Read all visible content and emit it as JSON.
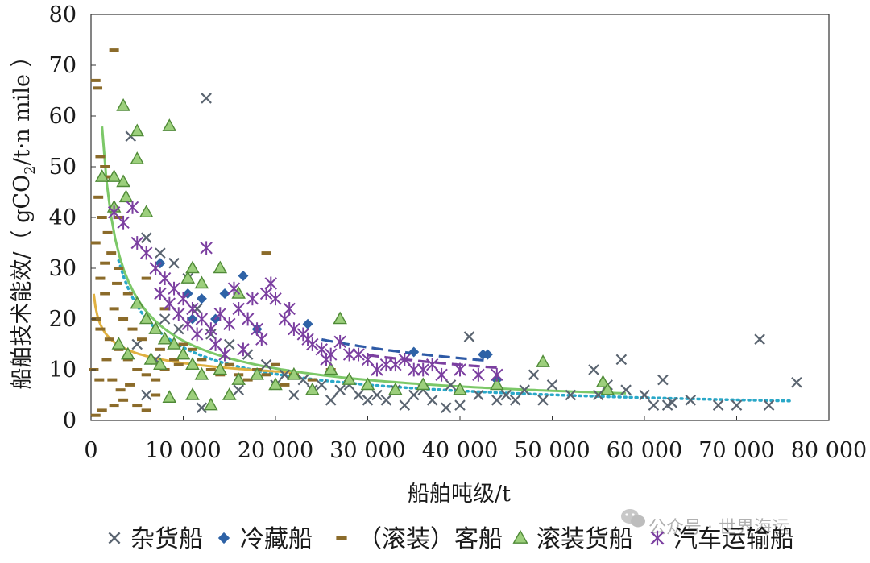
{
  "chart_data": {
    "type": "scatter",
    "title": "",
    "xlabel": "船舶吨级/t",
    "ylabel": "船舶技术能效/（ gCO2/t·n mile ）",
    "ylabel_parts": {
      "pre": "船舶技术能效/（ gCO",
      "sub": "2",
      "post": "/t·n mile ）"
    },
    "xlim": [
      0,
      80000
    ],
    "ylim": [
      0,
      80
    ],
    "x_ticks": [
      0,
      10000,
      20000,
      30000,
      40000,
      50000,
      60000,
      70000,
      80000
    ],
    "x_tick_labels": [
      "0",
      "10 000",
      "20 000",
      "30 000",
      "40 000",
      "50 000",
      "60 000",
      "70 000",
      "80 000"
    ],
    "y_ticks": [
      0,
      10,
      20,
      30,
      40,
      50,
      60,
      70,
      80
    ],
    "y_tick_labels": [
      "0",
      "10",
      "20",
      "30",
      "40",
      "50",
      "60",
      "70",
      "80"
    ],
    "grid": false,
    "legend_position": "bottom",
    "series": [
      {
        "name": "杂货船",
        "marker": "x",
        "color": "#5a6470",
        "points": [
          [
            12500,
            63.5
          ],
          [
            4300,
            56
          ],
          [
            6000,
            36
          ],
          [
            7500,
            33
          ],
          [
            9000,
            31
          ],
          [
            10500,
            28
          ],
          [
            11500,
            22
          ],
          [
            8000,
            20
          ],
          [
            9500,
            18
          ],
          [
            13000,
            17
          ],
          [
            15000,
            15
          ],
          [
            17000,
            13
          ],
          [
            19000,
            11
          ],
          [
            21000,
            9
          ],
          [
            23000,
            8
          ],
          [
            25000,
            7
          ],
          [
            27000,
            6
          ],
          [
            29000,
            5
          ],
          [
            31000,
            5
          ],
          [
            33000,
            6
          ],
          [
            35000,
            5
          ],
          [
            37000,
            4
          ],
          [
            38500,
            2.5
          ],
          [
            36000,
            6
          ],
          [
            39000,
            7
          ],
          [
            41000,
            16.5
          ],
          [
            42000,
            5
          ],
          [
            44000,
            4
          ],
          [
            46000,
            4
          ],
          [
            48000,
            9
          ],
          [
            50000,
            7
          ],
          [
            52000,
            5
          ],
          [
            54500,
            10
          ],
          [
            56000,
            7
          ],
          [
            57500,
            12
          ],
          [
            60000,
            5
          ],
          [
            62000,
            8
          ],
          [
            62500,
            3
          ],
          [
            63000,
            3.5
          ],
          [
            65000,
            4
          ],
          [
            68000,
            3
          ],
          [
            70000,
            3
          ],
          [
            72500,
            16
          ],
          [
            73500,
            3
          ],
          [
            76500,
            7.5
          ],
          [
            6000,
            5
          ],
          [
            5000,
            15
          ],
          [
            7000,
            12
          ],
          [
            26000,
            4
          ],
          [
            30000,
            4
          ],
          [
            34000,
            3
          ],
          [
            40000,
            3
          ],
          [
            45000,
            5
          ],
          [
            47000,
            6
          ],
          [
            49000,
            4
          ],
          [
            55000,
            5
          ],
          [
            58000,
            6
          ],
          [
            61000,
            3
          ],
          [
            12000,
            2.5
          ],
          [
            16000,
            6
          ],
          [
            20000,
            7
          ],
          [
            22000,
            5
          ],
          [
            24000,
            6
          ],
          [
            28000,
            7
          ],
          [
            32000,
            4
          ]
        ]
      },
      {
        "name": "冷藏船",
        "marker": "diamond",
        "color": "#2e62a6",
        "points": [
          [
            7500,
            31
          ],
          [
            10500,
            25
          ],
          [
            11000,
            20
          ],
          [
            12000,
            24
          ],
          [
            13500,
            20
          ],
          [
            14500,
            25
          ],
          [
            16500,
            28.5
          ],
          [
            18000,
            18
          ],
          [
            23500,
            19
          ],
          [
            35000,
            13.5
          ],
          [
            42500,
            13
          ],
          [
            43000,
            13
          ],
          [
            44000,
            8
          ]
        ]
      },
      {
        "name": "（滚装）客船",
        "marker": "dash",
        "color": "#8b6b2a",
        "points": [
          [
            500,
            67
          ],
          [
            700,
            65.5
          ],
          [
            2500,
            73
          ],
          [
            1000,
            52
          ],
          [
            1500,
            50
          ],
          [
            2000,
            48
          ],
          [
            800,
            44
          ],
          [
            1200,
            40
          ],
          [
            1800,
            37
          ],
          [
            500,
            35
          ],
          [
            2200,
            33
          ],
          [
            3000,
            30
          ],
          [
            1000,
            28
          ],
          [
            1500,
            25
          ],
          [
            2500,
            22
          ],
          [
            3500,
            20
          ],
          [
            1000,
            18
          ],
          [
            2000,
            16
          ],
          [
            3000,
            14
          ],
          [
            4000,
            12
          ],
          [
            5000,
            10
          ],
          [
            6000,
            9
          ],
          [
            7000,
            8
          ],
          [
            8000,
            10
          ],
          [
            9000,
            12
          ],
          [
            10000,
            15
          ],
          [
            11000,
            14
          ],
          [
            12000,
            12
          ],
          [
            13000,
            10
          ],
          [
            14000,
            9
          ],
          [
            15000,
            11
          ],
          [
            16000,
            9
          ],
          [
            17000,
            8
          ],
          [
            18000,
            10
          ],
          [
            19000,
            9
          ],
          [
            20000,
            11
          ],
          [
            21000,
            7
          ],
          [
            22000,
            9
          ],
          [
            24000,
            8
          ],
          [
            26000,
            10
          ],
          [
            19000,
            33
          ],
          [
            500,
            1
          ],
          [
            1200,
            2
          ],
          [
            2500,
            3
          ],
          [
            3500,
            4
          ],
          [
            5000,
            3
          ],
          [
            6000,
            2
          ],
          [
            7000,
            5
          ],
          [
            4000,
            25
          ],
          [
            6000,
            28
          ],
          [
            8000,
            22
          ],
          [
            3000,
            40
          ],
          [
            1500,
            31
          ],
          [
            2800,
            27
          ],
          [
            4500,
            18
          ],
          [
            5500,
            16
          ],
          [
            7500,
            14
          ],
          [
            9500,
            11
          ],
          [
            600,
            20
          ],
          [
            1700,
            12
          ],
          [
            2300,
            8
          ],
          [
            3200,
            6
          ],
          [
            4200,
            7
          ],
          [
            300,
            10
          ],
          [
            900,
            8
          ]
        ]
      },
      {
        "name": "滚装货船",
        "marker": "triangle",
        "color": "#8dc06b",
        "points": [
          [
            3500,
            62
          ],
          [
            8500,
            58
          ],
          [
            5000,
            57
          ],
          [
            5000,
            51.5
          ],
          [
            1200,
            48
          ],
          [
            2500,
            48
          ],
          [
            3500,
            47
          ],
          [
            3800,
            44
          ],
          [
            6000,
            41
          ],
          [
            2500,
            42
          ],
          [
            10500,
            28
          ],
          [
            11000,
            30
          ],
          [
            12000,
            27
          ],
          [
            14000,
            30
          ],
          [
            16000,
            25
          ],
          [
            5000,
            23
          ],
          [
            6000,
            20
          ],
          [
            7000,
            18
          ],
          [
            8000,
            16
          ],
          [
            9000,
            15
          ],
          [
            10000,
            13
          ],
          [
            11000,
            11
          ],
          [
            12000,
            9
          ],
          [
            14000,
            10
          ],
          [
            16000,
            8
          ],
          [
            18000,
            9
          ],
          [
            20000,
            7
          ],
          [
            22000,
            9
          ],
          [
            24000,
            6
          ],
          [
            26000,
            10
          ],
          [
            27000,
            20
          ],
          [
            28000,
            8
          ],
          [
            30000,
            7
          ],
          [
            33000,
            6
          ],
          [
            36000,
            7
          ],
          [
            40000,
            6
          ],
          [
            44000,
            7
          ],
          [
            49000,
            11.5
          ],
          [
            55500,
            7.5
          ],
          [
            56000,
            6
          ],
          [
            8500,
            4.5
          ],
          [
            11000,
            5
          ],
          [
            13000,
            3
          ],
          [
            15000,
            5
          ],
          [
            4000,
            13
          ],
          [
            3000,
            15
          ],
          [
            6500,
            12
          ],
          [
            7500,
            11
          ]
        ]
      },
      {
        "name": "汽车运输船",
        "marker": "asterisk",
        "color": "#7b3fa0",
        "points": [
          [
            2500,
            41
          ],
          [
            3500,
            39
          ],
          [
            4500,
            42
          ],
          [
            5000,
            35
          ],
          [
            6000,
            33
          ],
          [
            7000,
            30
          ],
          [
            8000,
            28
          ],
          [
            9000,
            26
          ],
          [
            10000,
            24
          ],
          [
            11000,
            22
          ],
          [
            12000,
            20
          ],
          [
            13000,
            18
          ],
          [
            14000,
            21
          ],
          [
            15000,
            19
          ],
          [
            16000,
            22
          ],
          [
            17000,
            20
          ],
          [
            18000,
            18
          ],
          [
            19000,
            25
          ],
          [
            20000,
            24
          ],
          [
            21000,
            20
          ],
          [
            22000,
            18
          ],
          [
            23000,
            17
          ],
          [
            24000,
            15
          ],
          [
            25000,
            14
          ],
          [
            26000,
            13
          ],
          [
            27000,
            15.5
          ],
          [
            28000,
            13
          ],
          [
            30000,
            12
          ],
          [
            32000,
            11
          ],
          [
            34000,
            12
          ],
          [
            36000,
            10
          ],
          [
            38000,
            9
          ],
          [
            40000,
            10
          ],
          [
            42000,
            9
          ],
          [
            44000,
            9
          ],
          [
            12500,
            34
          ],
          [
            15500,
            26
          ],
          [
            17500,
            24
          ],
          [
            19500,
            27
          ],
          [
            18500,
            16
          ],
          [
            16500,
            14
          ],
          [
            14500,
            13
          ],
          [
            13500,
            15
          ],
          [
            11500,
            17
          ],
          [
            10500,
            19
          ],
          [
            9500,
            21
          ],
          [
            8500,
            23
          ],
          [
            7500,
            25
          ],
          [
            21500,
            22
          ],
          [
            23500,
            16
          ],
          [
            25500,
            12
          ],
          [
            29000,
            13
          ],
          [
            31000,
            10
          ],
          [
            33000,
            11
          ],
          [
            35000,
            10
          ],
          [
            37000,
            11
          ]
        ]
      }
    ],
    "trendlines": [
      {
        "series": "杂货船",
        "color": "#2aa8c8",
        "style": "dotted",
        "x_range": [
          3000,
          76000
        ]
      },
      {
        "series": "冷藏船",
        "color": "#2e5aa6",
        "style": "dashed",
        "x_range": [
          25000,
          43000
        ]
      },
      {
        "series": "（滚装）客船",
        "color": "#e0b040",
        "style": "solid",
        "x_range": [
          300,
          22000
        ]
      },
      {
        "series": "滚装货船",
        "color": "#7cc868",
        "style": "solid",
        "x_range": [
          1200,
          58000
        ]
      },
      {
        "series": "汽车运输船",
        "color": "#7b3fa0",
        "style": "dashed",
        "x_range": [
          30000,
          44000
        ]
      }
    ]
  },
  "watermark": "公众号 · 世界海运",
  "icons": {
    "watermark": "wechat-icon"
  }
}
